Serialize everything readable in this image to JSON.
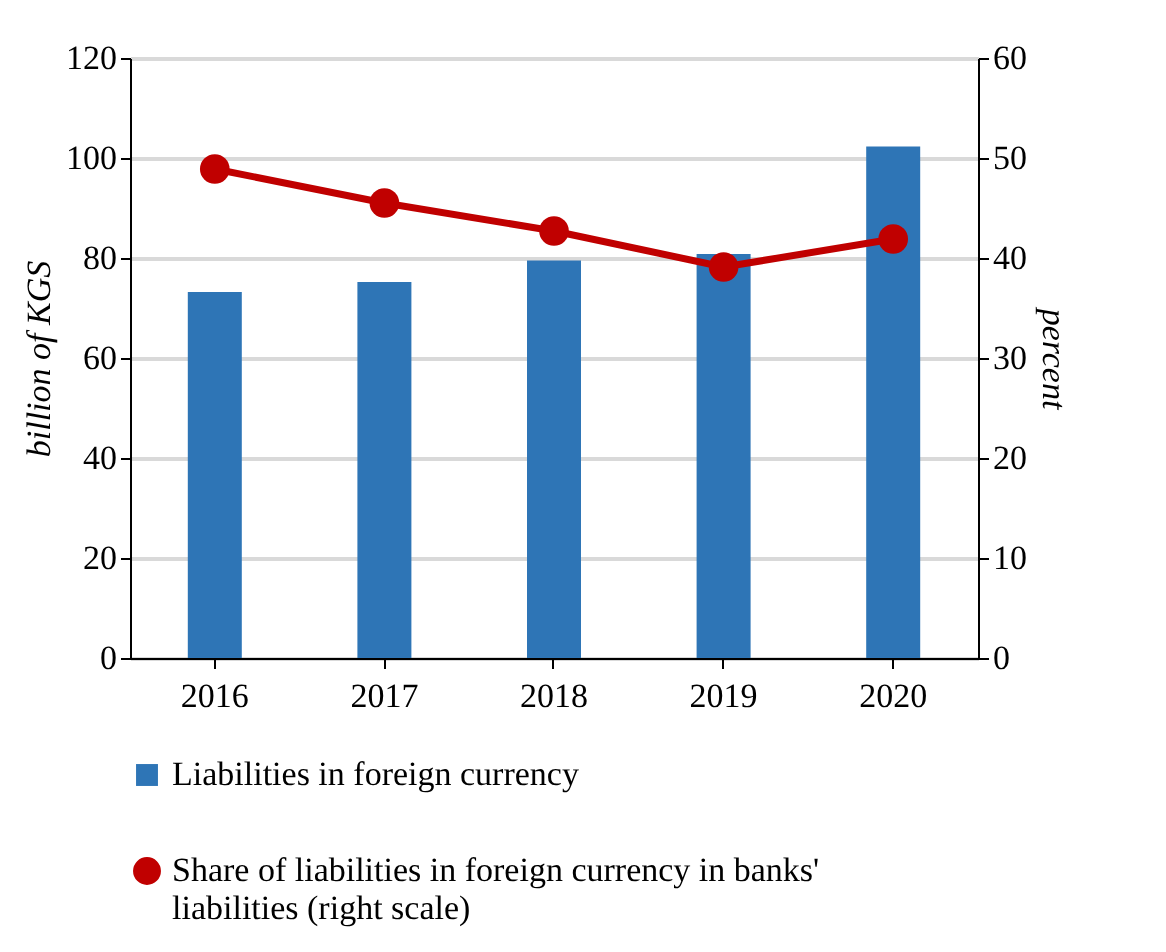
{
  "chart_data": {
    "type": "bar",
    "categories": [
      "2016",
      "2017",
      "2018",
      "2019",
      "2020"
    ],
    "ylabel": "billion of KGS",
    "y2label": "percent",
    "ylim": [
      0,
      120
    ],
    "yticks": [
      0,
      20,
      40,
      60,
      80,
      100,
      120
    ],
    "y2lim": [
      0,
      60
    ],
    "y2ticks": [
      0,
      10,
      20,
      30,
      40,
      50,
      60
    ],
    "grid": "y",
    "legend": "bottom",
    "series": [
      {
        "name": "Liabilities in foreign currency",
        "color": "#2e75b6",
        "values": [
          73.2,
          75.2,
          79.5,
          80.8,
          102.3
        ]
      },
      {
        "name": "Share of liabilities in foreign currency in banks' liabilities (right scale)",
        "type": "line",
        "axis": "y2",
        "color": "#c00000",
        "marker": "circle",
        "values": [
          48.9,
          45.5,
          42.7,
          39.1,
          41.9
        ]
      }
    ]
  }
}
